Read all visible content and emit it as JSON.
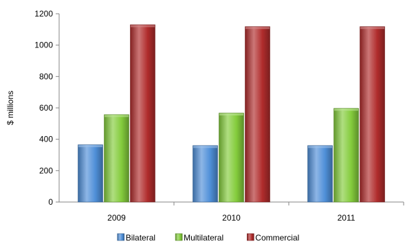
{
  "chart_data": {
    "type": "bar",
    "categories": [
      "2009",
      "2010",
      "2011"
    ],
    "series": [
      {
        "name": "Bilateral",
        "values": [
          365,
          360,
          360
        ],
        "color": "#4f8fd8"
      },
      {
        "name": "Multilateral",
        "values": [
          557,
          567,
          597
        ],
        "color": "#84cc3c"
      },
      {
        "name": "Commercial",
        "values": [
          1130,
          1118,
          1118
        ],
        "color": "#b02c2c"
      }
    ],
    "title": "",
    "xlabel": "",
    "ylabel": "$ millions",
    "ylim": [
      0,
      1200
    ],
    "yticks": [
      "0",
      "200",
      "400",
      "600",
      "800",
      "1000",
      "1200"
    ],
    "grid": false,
    "legend_position": "bottom"
  }
}
